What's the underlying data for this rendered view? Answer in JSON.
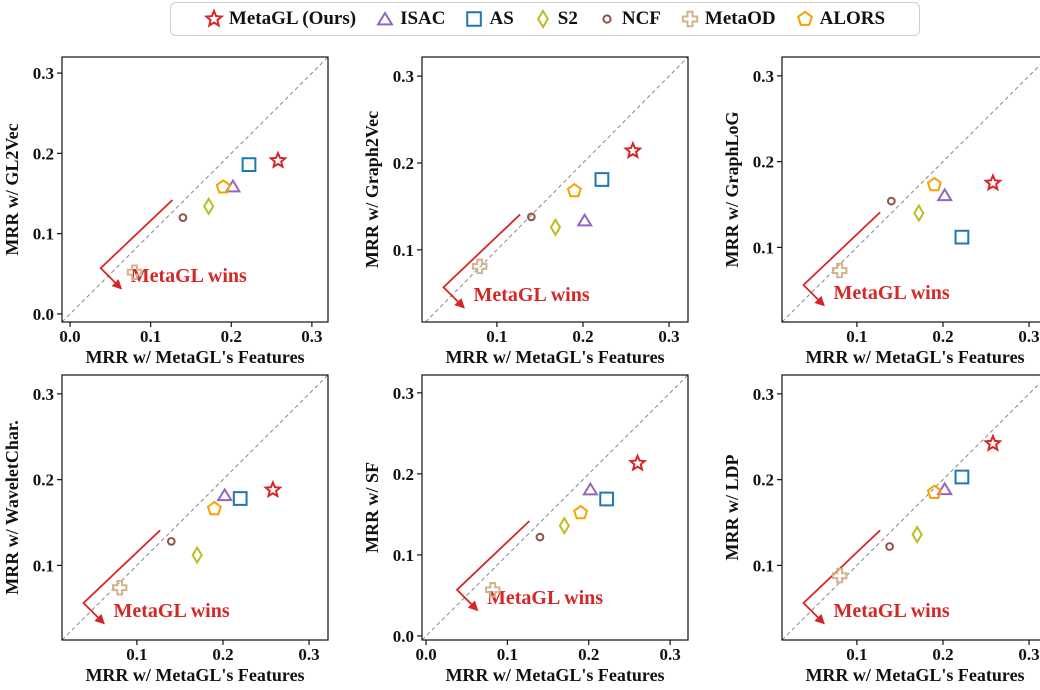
{
  "legend": [
    {
      "name": "MetaGL (Ours)",
      "marker": "star",
      "color": "#d62728"
    },
    {
      "name": "ISAC",
      "marker": "triangle",
      "color": "#9467bd"
    },
    {
      "name": "AS",
      "marker": "square",
      "color": "#1f77b4"
    },
    {
      "name": "S2",
      "marker": "diamond",
      "color": "#bcbd22"
    },
    {
      "name": "NCF",
      "marker": "circle",
      "color": "#8c564b"
    },
    {
      "name": "MetaOD",
      "marker": "plus",
      "color": "#d2b48c"
    },
    {
      "name": "ALORS",
      "marker": "pentagon",
      "color": "#f5a300"
    }
  ],
  "chart_data": [
    {
      "type": "scatter",
      "xlabel": "MRR w/ MetaGL's Features",
      "ylabel": "MRR w/ GL2Vec",
      "xlim": [
        -0.01,
        0.32
      ],
      "ylim": [
        -0.01,
        0.32
      ],
      "xticks": [
        "0.0",
        "0.1",
        "0.2",
        "0.3"
      ],
      "xtick_values": [
        0.0,
        0.1,
        0.2,
        0.3
      ],
      "yticks": [
        "0.0",
        "0.1",
        "0.2",
        "0.3"
      ],
      "ytick_values": [
        0.0,
        0.1,
        0.2,
        0.3
      ],
      "annotation": "MetaGL wins",
      "points": [
        {
          "series": "MetaGL (Ours)",
          "x": 0.258,
          "y": 0.191
        },
        {
          "series": "ISAC",
          "x": 0.202,
          "y": 0.159
        },
        {
          "series": "AS",
          "x": 0.222,
          "y": 0.186
        },
        {
          "series": "S2",
          "x": 0.172,
          "y": 0.134
        },
        {
          "series": "NCF",
          "x": 0.14,
          "y": 0.12
        },
        {
          "series": "MetaOD",
          "x": 0.08,
          "y": 0.052
        },
        {
          "series": "ALORS",
          "x": 0.19,
          "y": 0.158
        }
      ]
    },
    {
      "type": "scatter",
      "xlabel": "MRR w/ MetaGL's Features",
      "ylabel": "MRR w/ Graph2Vec",
      "xlim": [
        0.013,
        0.322
      ],
      "ylim": [
        0.017,
        0.322
      ],
      "xticks": [
        "0.1",
        "0.2",
        "0.3"
      ],
      "xtick_values": [
        0.1,
        0.2,
        0.3
      ],
      "yticks": [
        "0.1",
        "0.2",
        "0.3"
      ],
      "ytick_values": [
        0.1,
        0.2,
        0.3
      ],
      "annotation": "MetaGL wins",
      "points": [
        {
          "series": "MetaGL (Ours)",
          "x": 0.258,
          "y": 0.214
        },
        {
          "series": "ISAC",
          "x": 0.202,
          "y": 0.134
        },
        {
          "series": "AS",
          "x": 0.222,
          "y": 0.181
        },
        {
          "series": "S2",
          "x": 0.168,
          "y": 0.126
        },
        {
          "series": "NCF",
          "x": 0.14,
          "y": 0.138
        },
        {
          "series": "MetaOD",
          "x": 0.08,
          "y": 0.081
        },
        {
          "series": "ALORS",
          "x": 0.19,
          "y": 0.168
        }
      ]
    },
    {
      "type": "scatter",
      "xlabel": "MRR w/ MetaGL's Features",
      "ylabel": "MRR w/ GraphLoG",
      "xlim": [
        0.013,
        0.322
      ],
      "ylim": [
        0.013,
        0.322
      ],
      "xticks": [
        "0.1",
        "0.2",
        "0.3"
      ],
      "xtick_values": [
        0.1,
        0.2,
        0.3
      ],
      "yticks": [
        "0.1",
        "0.2",
        "0.3"
      ],
      "ytick_values": [
        0.1,
        0.2,
        0.3
      ],
      "annotation": "MetaGL wins",
      "points": [
        {
          "series": "MetaGL (Ours)",
          "x": 0.258,
          "y": 0.175
        },
        {
          "series": "ISAC",
          "x": 0.202,
          "y": 0.161
        },
        {
          "series": "AS",
          "x": 0.222,
          "y": 0.112
        },
        {
          "series": "S2",
          "x": 0.172,
          "y": 0.14
        },
        {
          "series": "NCF",
          "x": 0.14,
          "y": 0.154
        },
        {
          "series": "MetaOD",
          "x": 0.08,
          "y": 0.073
        },
        {
          "series": "ALORS",
          "x": 0.19,
          "y": 0.173
        }
      ]
    },
    {
      "type": "scatter",
      "xlabel": "MRR w/ MetaGL's Features",
      "ylabel": "MRR w/ WaveletChar.",
      "xlim": [
        0.013,
        0.322
      ],
      "ylim": [
        0.013,
        0.322
      ],
      "xticks": [
        "0.1",
        "0.2",
        "0.3"
      ],
      "xtick_values": [
        0.1,
        0.2,
        0.3
      ],
      "yticks": [
        "0.1",
        "0.2",
        "0.3"
      ],
      "ytick_values": [
        0.1,
        0.2,
        0.3
      ],
      "annotation": "MetaGL wins",
      "points": [
        {
          "series": "MetaGL (Ours)",
          "x": 0.258,
          "y": 0.188
        },
        {
          "series": "ISAC",
          "x": 0.202,
          "y": 0.182
        },
        {
          "series": "AS",
          "x": 0.22,
          "y": 0.178
        },
        {
          "series": "S2",
          "x": 0.17,
          "y": 0.112
        },
        {
          "series": "NCF",
          "x": 0.14,
          "y": 0.128
        },
        {
          "series": "MetaOD",
          "x": 0.08,
          "y": 0.074
        },
        {
          "series": "ALORS",
          "x": 0.19,
          "y": 0.166
        }
      ]
    },
    {
      "type": "scatter",
      "xlabel": "MRR w/ MetaGL's Features",
      "ylabel": "MRR w/ SF",
      "xlim": [
        -0.005,
        0.322
      ],
      "ylim": [
        -0.005,
        0.322
      ],
      "xticks": [
        "0.0",
        "0.1",
        "0.2",
        "0.3"
      ],
      "xtick_values": [
        0.0,
        0.1,
        0.2,
        0.3
      ],
      "yticks": [
        "0.0",
        "0.1",
        "0.2",
        "0.3"
      ],
      "ytick_values": [
        0.0,
        0.1,
        0.2,
        0.3
      ],
      "annotation": "MetaGL wins",
      "points": [
        {
          "series": "MetaGL (Ours)",
          "x": 0.26,
          "y": 0.213
        },
        {
          "series": "ISAC",
          "x": 0.202,
          "y": 0.181
        },
        {
          "series": "AS",
          "x": 0.222,
          "y": 0.169
        },
        {
          "series": "S2",
          "x": 0.17,
          "y": 0.136
        },
        {
          "series": "NCF",
          "x": 0.14,
          "y": 0.122
        },
        {
          "series": "MetaOD",
          "x": 0.082,
          "y": 0.057
        },
        {
          "series": "ALORS",
          "x": 0.19,
          "y": 0.152
        }
      ]
    },
    {
      "type": "scatter",
      "xlabel": "MRR w/ MetaGL's Features",
      "ylabel": "MRR w/ LDP",
      "xlim": [
        0.013,
        0.322
      ],
      "ylim": [
        0.013,
        0.322
      ],
      "xticks": [
        "0.1",
        "0.2",
        "0.3"
      ],
      "xtick_values": [
        0.1,
        0.2,
        0.3
      ],
      "yticks": [
        "0.1",
        "0.2",
        "0.3"
      ],
      "ytick_values": [
        0.1,
        0.2,
        0.3
      ],
      "annotation": "MetaGL wins",
      "points": [
        {
          "series": "MetaGL (Ours)",
          "x": 0.258,
          "y": 0.242
        },
        {
          "series": "ISAC",
          "x": 0.202,
          "y": 0.189
        },
        {
          "series": "AS",
          "x": 0.222,
          "y": 0.203
        },
        {
          "series": "S2",
          "x": 0.17,
          "y": 0.136
        },
        {
          "series": "NCF",
          "x": 0.138,
          "y": 0.122
        },
        {
          "series": "MetaOD",
          "x": 0.08,
          "y": 0.088
        },
        {
          "series": "ALORS",
          "x": 0.19,
          "y": 0.185
        }
      ]
    }
  ]
}
